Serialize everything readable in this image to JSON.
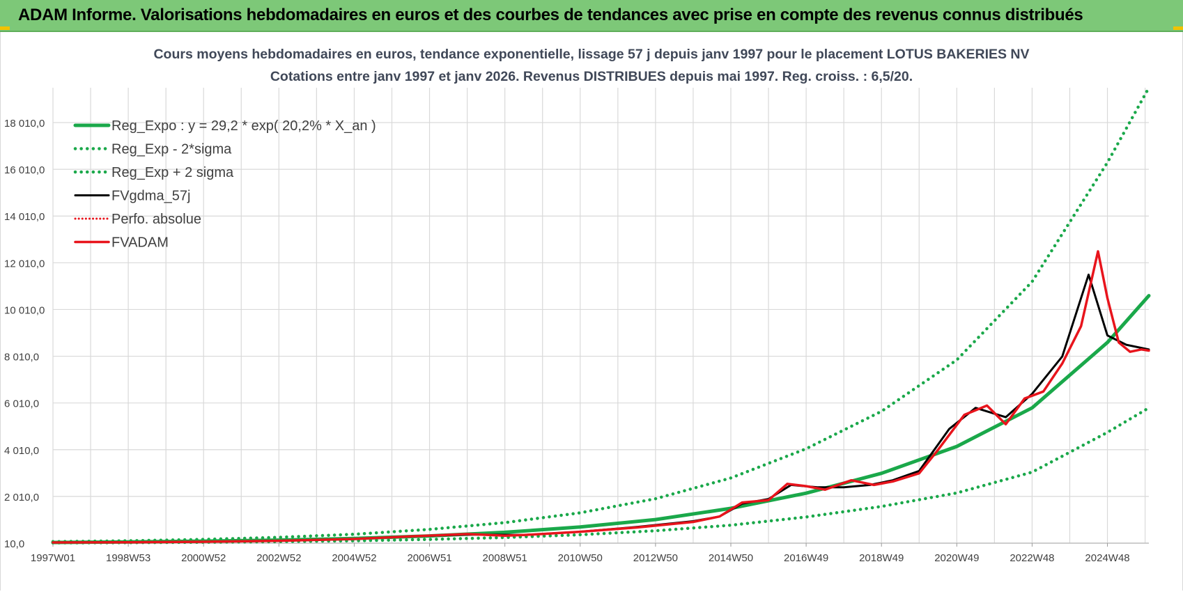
{
  "banner": {
    "title": "ADAM Informe. Valorisations hebdomadaires en euros et des courbes de tendances avec prise en compte des revenus connus distribués"
  },
  "colors": {
    "banner_bg": "#7dc878",
    "trend_green": "#1aa84a",
    "perf_red": "#e8141c",
    "smooth_black": "#000000",
    "grid": "#d9d9d9"
  },
  "chart_data": {
    "type": "line",
    "title_line1": "Cours moyens hebdomadaires en euros, tendance exponentielle, lissage 57 j depuis janv 1997  pour le  placement LOTUS BAKERIES NV",
    "title_line2": "Cotations entre janv 1997 et janv 2026. Revenus DISTRIBUES depuis mai 1997.  Reg. croiss. : 6,5/20.",
    "xlabel": "",
    "ylabel": "",
    "x_range": [
      1997.0,
      2026.1
    ],
    "ylim": [
      10,
      19500
    ],
    "y_ticks": [
      10,
      2010,
      4010,
      6010,
      8010,
      10010,
      12010,
      14010,
      16010,
      18010
    ],
    "y_tick_labels": [
      "10,0",
      "2 010,0",
      "4 010,0",
      "6 010,0",
      "8 010,0",
      "10 010,0",
      "12 010,0",
      "14 010,0",
      "16 010,0",
      "18 010,0"
    ],
    "x_ticks": [
      1997.0,
      1999.0,
      2001.0,
      2003.0,
      2005.0,
      2007.0,
      2009.0,
      2011.0,
      2013.0,
      2015.0,
      2017.0,
      2019.0,
      2021.0,
      2023.0,
      2025.0
    ],
    "x_tick_labels": [
      "1997W01",
      "1998W53",
      "2000W52",
      "2002W52",
      "2004W52",
      "2006W51",
      "2008W51",
      "2010W50",
      "2012W50",
      "2014W50",
      "2016W49",
      "2018W49",
      "2020W49",
      "2022W48",
      "2024W48"
    ],
    "legend_position": "top-left",
    "series": [
      {
        "name": "Reg_Expo : y = 29,2 * exp( 20,2% *  X_an )",
        "style": "solid-green",
        "x": [
          1997,
          1999,
          2001,
          2003,
          2005,
          2007,
          2009,
          2011,
          2013,
          2015,
          2017,
          2019,
          2021,
          2023,
          2025,
          2026.1
        ],
        "values": [
          40,
          60,
          95,
          140,
          210,
          320,
          475,
          700,
          1020,
          1500,
          2150,
          3000,
          4150,
          5800,
          8600,
          10600
        ]
      },
      {
        "name": "Reg_Exp - 2*sigma",
        "style": "dotted-green",
        "x": [
          1997,
          1999,
          2001,
          2003,
          2005,
          2007,
          2009,
          2011,
          2013,
          2015,
          2017,
          2019,
          2021,
          2023,
          2025,
          2026.1
        ],
        "values": [
          22,
          32,
          50,
          75,
          110,
          170,
          250,
          370,
          540,
          780,
          1130,
          1580,
          2160,
          3050,
          4750,
          5800
        ]
      },
      {
        "name": "Reg_Exp + 2 sigma",
        "style": "dotted-green",
        "x": [
          1997,
          1999,
          2001,
          2003,
          2005,
          2007,
          2009,
          2011,
          2013,
          2015,
          2017,
          2019,
          2021,
          2023,
          2025,
          2026.1
        ],
        "values": [
          75,
          110,
          170,
          260,
          390,
          600,
          890,
          1310,
          1910,
          2800,
          4050,
          5650,
          7850,
          11200,
          16300,
          19500
        ]
      },
      {
        "name": "FVgdma_57j",
        "style": "solid-black",
        "x": [
          1997,
          1999,
          2001,
          2003,
          2005,
          2006.5,
          2008,
          2009.5,
          2011,
          2012.5,
          2014,
          2014.7,
          2015.3,
          2016,
          2016.6,
          2017.3,
          2018,
          2018.7,
          2019.3,
          2020,
          2020.8,
          2021.5,
          2022.3,
          2023,
          2023.8,
          2024.5,
          2025,
          2025.5,
          2026.1
        ],
        "values": [
          40,
          50,
          70,
          110,
          190,
          300,
          380,
          360,
          500,
          700,
          950,
          1150,
          1700,
          1900,
          2500,
          2400,
          2400,
          2500,
          2700,
          3100,
          4900,
          5800,
          5400,
          6400,
          8000,
          11500,
          8900,
          8500,
          8300
        ]
      },
      {
        "name": "Perfo. absolue",
        "style": "dotted-red",
        "x": [],
        "values": []
      },
      {
        "name": "FVADAM",
        "style": "solid-red",
        "x": [
          1997,
          1999,
          2001,
          2003,
          2005,
          2006.5,
          2008,
          2009,
          2009.5,
          2011,
          2012.5,
          2014,
          2014.7,
          2015.3,
          2016,
          2016.5,
          2017,
          2017.5,
          2018.2,
          2018.8,
          2019.3,
          2020,
          2020.5,
          2021.2,
          2021.8,
          2022.3,
          2022.8,
          2023.3,
          2023.8,
          2024.3,
          2024.75,
          2025,
          2025.3,
          2025.6,
          2025.9,
          2026.1
        ],
        "values": [
          40,
          50,
          70,
          110,
          190,
          300,
          400,
          330,
          360,
          500,
          680,
          920,
          1150,
          1750,
          1850,
          2550,
          2450,
          2300,
          2700,
          2500,
          2650,
          3000,
          4000,
          5500,
          5900,
          5100,
          6200,
          6500,
          7700,
          9300,
          12500,
          10500,
          8600,
          8200,
          8300,
          8250
        ]
      }
    ]
  }
}
